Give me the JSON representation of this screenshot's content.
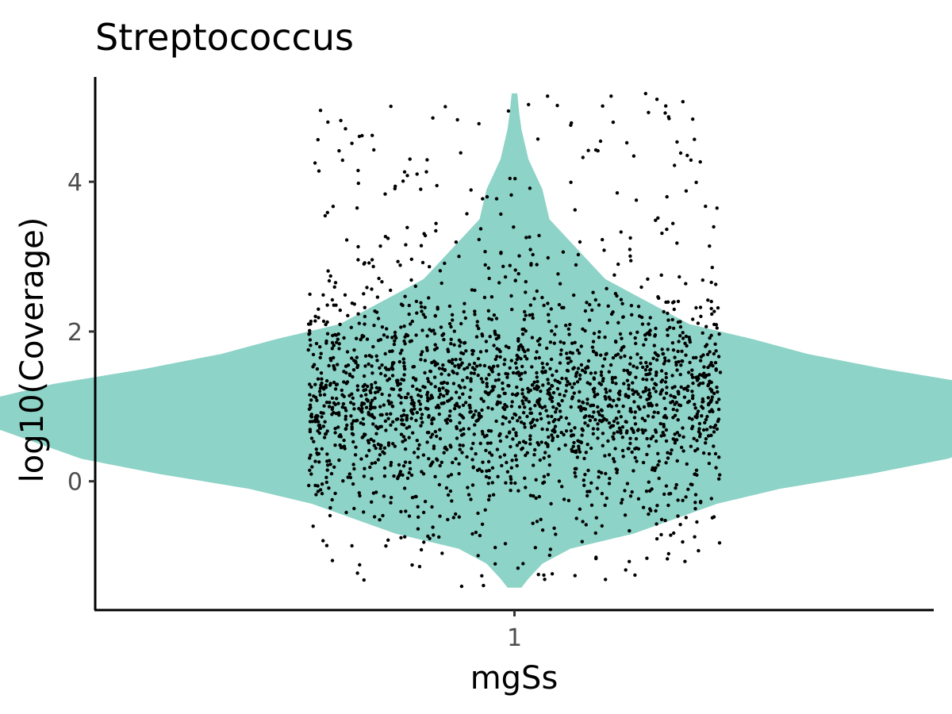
{
  "chart_data": {
    "type": "violin",
    "title": "Streptococcus",
    "xlabel": "mgSs",
    "ylabel": "log10(Coverage)",
    "categories": [
      "1"
    ],
    "yticks": [
      "0",
      "2",
      "4"
    ],
    "ylim": [
      -1.72,
      5.4
    ],
    "violin": {
      "color": "#8dd3c7",
      "y_range": [
        -1.42,
        5.18
      ],
      "max_half_width": 0.75,
      "density": [
        [
          -1.42,
          0.01
        ],
        [
          -1.3,
          0.02
        ],
        [
          -1.1,
          0.04
        ],
        [
          -0.9,
          0.08
        ],
        [
          -0.7,
          0.17
        ],
        [
          -0.5,
          0.23
        ],
        [
          -0.3,
          0.29
        ],
        [
          -0.1,
          0.38
        ],
        [
          0.1,
          0.51
        ],
        [
          0.3,
          0.62
        ],
        [
          0.5,
          0.68
        ],
        [
          0.7,
          0.74
        ],
        [
          0.9,
          0.75
        ],
        [
          1.1,
          0.75
        ],
        [
          1.3,
          0.66
        ],
        [
          1.5,
          0.53
        ],
        [
          1.7,
          0.42
        ],
        [
          1.9,
          0.34
        ],
        [
          2.1,
          0.25
        ],
        [
          2.3,
          0.21
        ],
        [
          2.5,
          0.17
        ],
        [
          2.7,
          0.13
        ],
        [
          2.9,
          0.11
        ],
        [
          3.1,
          0.09
        ],
        [
          3.3,
          0.07
        ],
        [
          3.5,
          0.05
        ],
        [
          3.7,
          0.045
        ],
        [
          3.9,
          0.04
        ],
        [
          4.1,
          0.03
        ],
        [
          4.3,
          0.02
        ],
        [
          4.5,
          0.015
        ],
        [
          4.7,
          0.01
        ],
        [
          4.9,
          0.007
        ],
        [
          5.18,
          0.004
        ]
      ]
    },
    "points": {
      "color": "#000000",
      "count": 2200,
      "jitter_width": 0.25,
      "distribution": {
        "center": 1.1,
        "spread": 0.75,
        "min": -1.42,
        "max": 5.18
      }
    }
  }
}
